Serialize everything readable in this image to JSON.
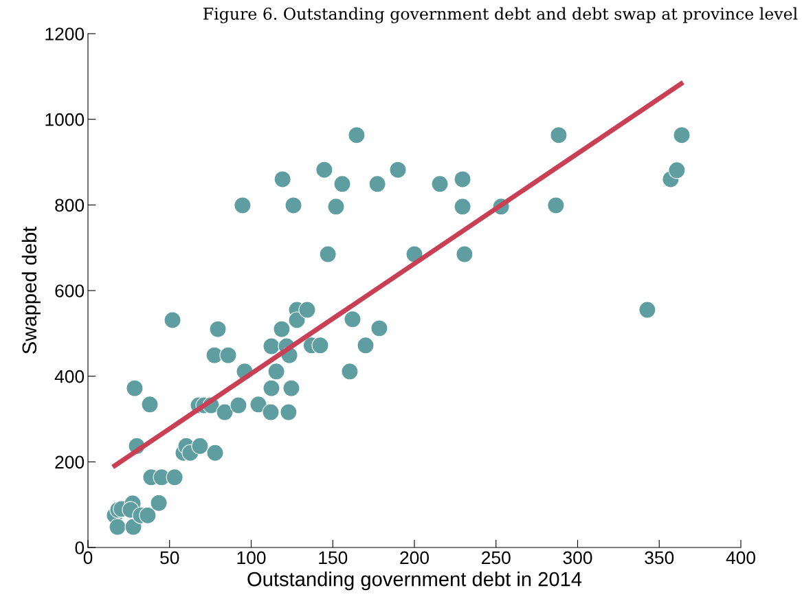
{
  "chart_data": {
    "type": "scatter",
    "title": "Figure 6. Outstanding government debt and debt swap at province level",
    "xlabel": "Outstanding government debt in 2014",
    "ylabel": "Swapped debt",
    "xlim": [
      0,
      400
    ],
    "xticks": [
      0,
      50,
      100,
      150,
      200,
      250,
      300,
      350,
      400
    ],
    "ylim": [
      0,
      1200
    ],
    "yticks": [
      0,
      200,
      400,
      600,
      800,
      1000,
      1200
    ],
    "grid": false,
    "series": [
      {
        "color": "#5f9ea0",
        "marker": "circle",
        "x": [
          16.4,
          18.5,
          18.1,
          20.6,
          27.4,
          26.1,
          27.8,
          32.4,
          36.6,
          43.4,
          38.7,
          45.1,
          53.1,
          28.6,
          29.9,
          37.9,
          51.8,
          58.5,
          60.2,
          62.7,
          68.6,
          67.8,
          71.2,
          75.4,
          77.5,
          79.6,
          77.9,
          83.8,
          85.9,
          92.2,
          96.0,
          94.7,
          104.4,
          112.4,
          112.4,
          112.0,
          115.4,
          118.7,
          119.2,
          121.7,
          123.4,
          122.9,
          124.6,
          125.9,
          128,
          128,
          134.3,
          137.0,
          142.3,
          144.8,
          147,
          155.8,
          152,
          164.6,
          160.4,
          162.1,
          170.1,
          177.3,
          178.5,
          189.9,
          200,
          215.6,
          229.5,
          229.5,
          230.7,
          253.1,
          286.7,
          288.4,
          342.7,
          357,
          360.8,
          363.8
        ],
        "values": [
          75,
          88,
          48,
          90,
          103,
          88,
          48,
          75,
          75,
          104,
          164,
          164,
          164,
          372,
          237,
          334,
          531,
          221,
          237,
          221,
          237,
          332,
          332,
          332,
          449,
          510,
          221,
          316,
          449,
          332,
          411,
          799,
          334,
          470,
          372,
          316,
          411,
          510,
          860,
          470,
          449,
          316,
          372,
          799,
          555,
          531,
          555,
          472,
          472,
          882,
          685,
          849,
          796,
          963,
          411,
          533,
          472,
          849,
          512,
          882,
          685,
          849,
          860,
          796,
          685,
          796,
          799,
          963,
          555,
          860,
          881,
          963
        ]
      },
      {
        "type": "line",
        "color": "#c94055",
        "marker": "none",
        "line_style": "solid",
        "x": [
          16.4,
          363.4
        ],
        "values": [
          191,
          1083
        ]
      }
    ]
  }
}
